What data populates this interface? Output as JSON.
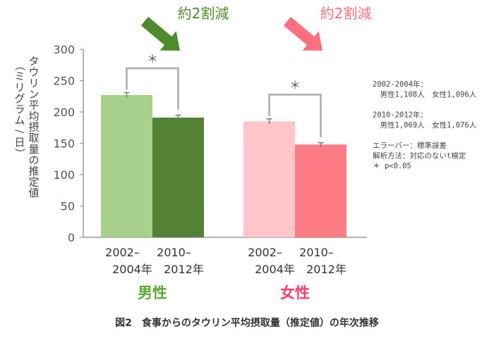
{
  "chart_data": {
    "type": "bar",
    "caption": "図2　食事からのタウリン平均摂取量（推定値）の年次推移",
    "ylabel_lines": [
      "タウリン平均摂取量の推定値",
      "（ミリグラム/日）"
    ],
    "ylim": [
      0,
      300
    ],
    "yticks": [
      0,
      50,
      100,
      150,
      200,
      250,
      300
    ],
    "groups": [
      {
        "name": "男性",
        "color": "#5aa832",
        "reduction_label": "約2割減",
        "reduction_color": "#4f8a2d",
        "arrow_color": "#4f8a2d",
        "significance": "＊",
        "bars": [
          {
            "category": [
              "2002–",
              "2004年"
            ],
            "value": 227,
            "error": 4,
            "color": "#a8d08d"
          },
          {
            "category": [
              "2010–",
              "2012年"
            ],
            "value": 191,
            "error": 4,
            "color": "#548235"
          }
        ]
      },
      {
        "name": "女性",
        "color": "#ff3c6e",
        "reduction_label": "約2割減",
        "reduction_color": "#ff6f7d",
        "arrow_color": "#ff6f7d",
        "significance": "＊",
        "bars": [
          {
            "category": [
              "2002–",
              "2004年"
            ],
            "value": 185,
            "error": 4,
            "color": "#ffc6c9"
          },
          {
            "category": [
              "2010–",
              "2012年"
            ],
            "value": 148,
            "error": 3,
            "color": "#ff7c85"
          }
        ]
      }
    ],
    "notes": [
      "2002-2004年：",
      "　男性1,108人　女性1,096人",
      "",
      "2010-2012年：",
      "　男性1,069人　女性1,076人",
      "",
      "エラーバー：標準誤差",
      "解析方法：対応のないt検定",
      "＊ p<0.05"
    ]
  }
}
